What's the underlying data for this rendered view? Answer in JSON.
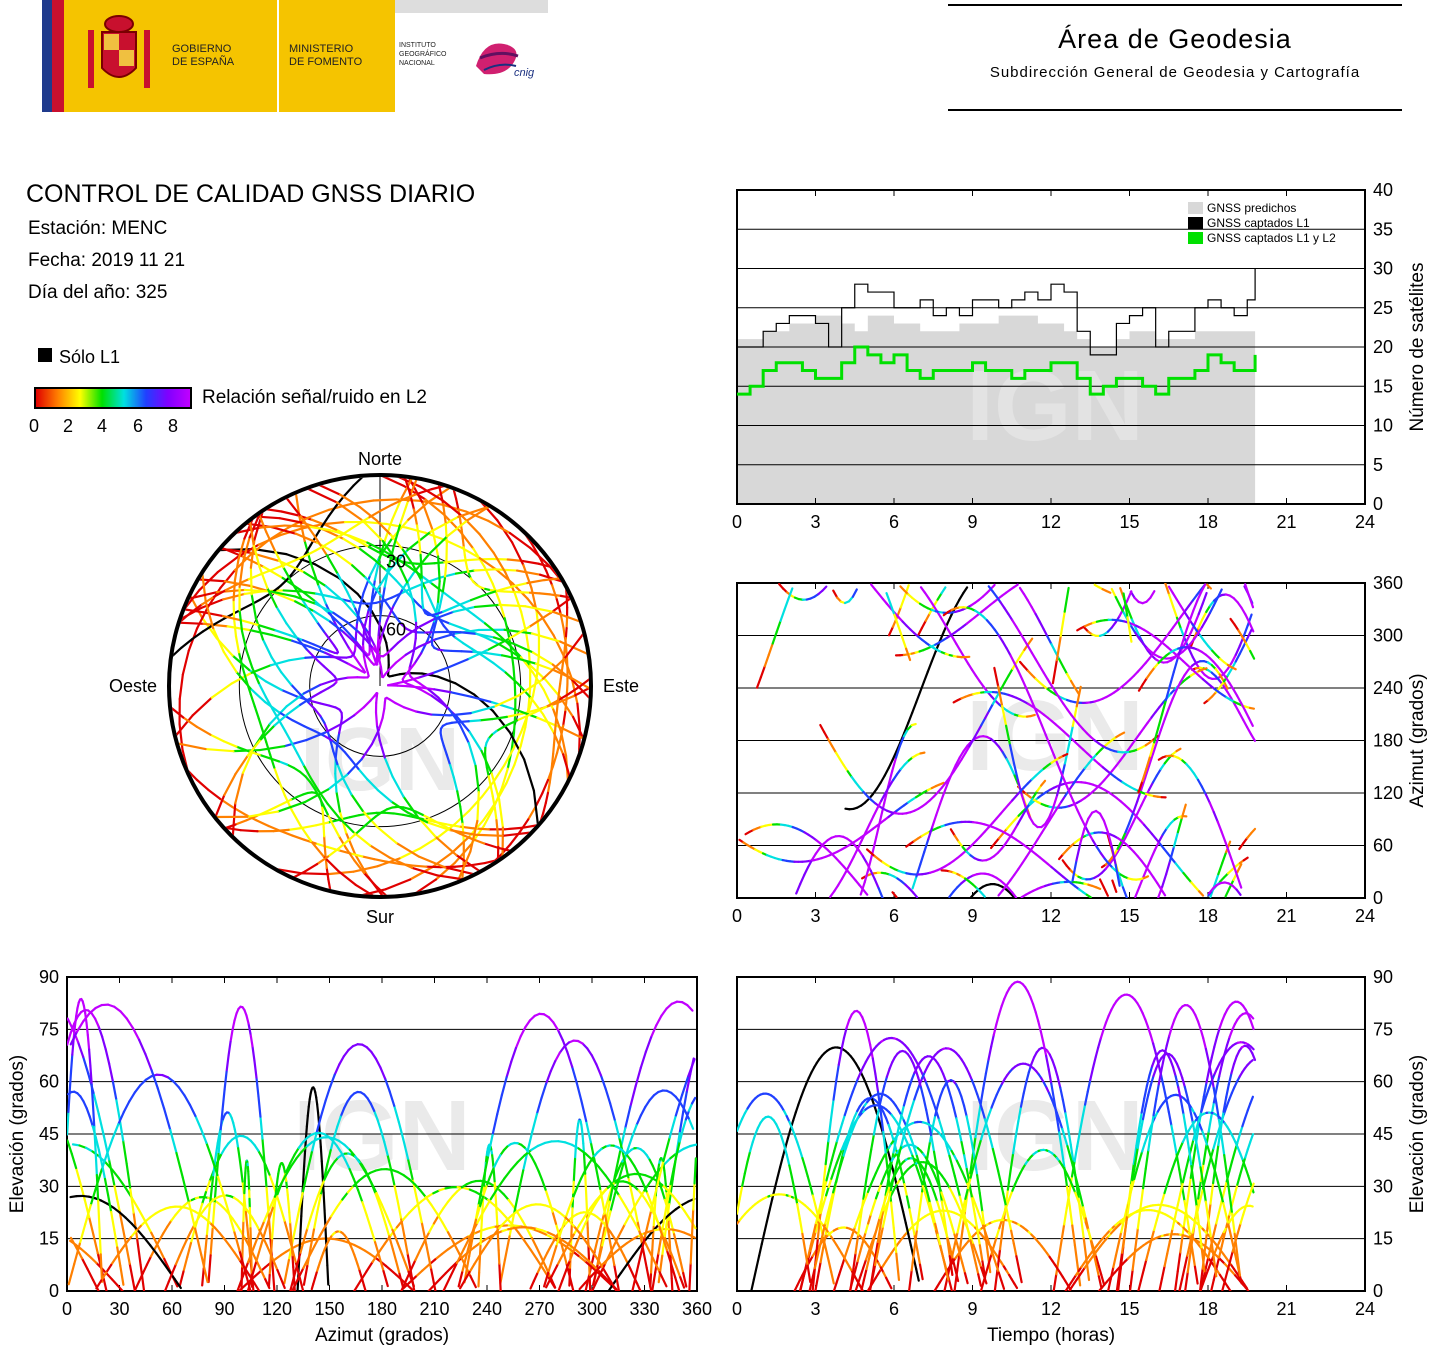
{
  "header": {
    "gobierno": [
      "GOBIERNO",
      "DE ESPAÑA"
    ],
    "ministerio": [
      "MINISTERIO",
      "DE FOMENTO"
    ],
    "instituto": [
      "INSTITUTO",
      "GEOGRÁFICO",
      "NACIONAL"
    ],
    "cnig": "cnig",
    "area_title": "Área de Geodesia",
    "area_subtitle": "Subdirección General de Geodesia y Cartografía"
  },
  "info": {
    "title": "CONTROL DE CALIDAD GNSS DIARIO",
    "station": "Estación: MENC",
    "date": "Fecha: 2019 11 21",
    "doy": "Día del año: 325"
  },
  "legend": {
    "l1_only": "Sólo L1",
    "snr_label": "Relación señal/ruido en L2",
    "snr_ticks": [
      "0",
      "2",
      "4",
      "6",
      "8"
    ],
    "colors": [
      "#e00000",
      "#ff8000",
      "#ffff00",
      "#00e000",
      "#00e0e0",
      "#2040ff",
      "#8000ff",
      "#c000ff"
    ]
  },
  "watermark": "IGN",
  "chart_data": [
    {
      "type": "line",
      "id": "satellites",
      "ylabel": "Número de satélites",
      "xlim": [
        0,
        24
      ],
      "ylim": [
        0,
        40
      ],
      "xticks": [
        0,
        3,
        6,
        9,
        12,
        15,
        18,
        21,
        24
      ],
      "yticks": [
        0,
        5,
        10,
        15,
        20,
        25,
        30,
        35,
        40
      ],
      "legend": [
        "GNSS predichos",
        "GNSS captados L1",
        "GNSS captados L1 y L2"
      ],
      "legend_colors": [
        "#d8d8d8",
        "#000000",
        "#00e000"
      ],
      "legend_position": "top-right",
      "grid": true,
      "x": [
        0,
        0.5,
        1,
        1.5,
        2,
        2.5,
        3,
        3.5,
        4,
        4.5,
        5,
        5.5,
        6,
        6.5,
        7,
        7.5,
        8,
        8.5,
        9,
        9.5,
        10,
        10.5,
        11,
        11.5,
        12,
        12.5,
        13,
        13.5,
        14,
        14.5,
        15,
        15.5,
        16,
        16.5,
        17,
        17.5,
        18,
        18.5,
        19,
        19.5,
        19.8
      ],
      "series": [
        {
          "name": "GNSS predichos",
          "values": [
            21,
            21,
            22,
            22,
            23,
            23,
            24,
            24,
            23,
            22,
            24,
            24,
            23,
            23,
            22,
            22,
            22,
            23,
            23,
            23,
            24,
            24,
            24,
            23,
            23,
            22,
            21,
            20,
            20,
            21,
            22,
            22,
            21,
            21,
            21,
            22,
            22,
            22,
            22,
            22,
            22
          ]
        },
        {
          "name": "GNSS captados L1",
          "values": [
            20,
            20,
            22,
            23,
            24,
            24,
            23,
            20,
            25,
            28,
            27,
            27,
            25,
            25,
            26,
            24,
            25,
            24,
            26,
            26,
            25,
            26,
            27,
            26,
            28,
            27,
            22,
            19,
            19,
            23,
            24,
            25,
            20,
            22,
            22,
            25,
            26,
            25,
            24,
            26,
            30
          ]
        },
        {
          "name": "GNSS captados L1 y L2",
          "values": [
            14,
            15,
            17,
            18,
            18,
            17,
            16,
            16,
            18,
            20,
            19,
            18,
            19,
            17,
            16,
            17,
            17,
            17,
            18,
            17,
            17,
            16,
            17,
            17,
            18,
            18,
            16,
            14,
            15,
            16,
            16,
            15,
            14,
            16,
            16,
            17,
            19,
            18,
            17,
            17,
            19
          ]
        }
      ]
    },
    {
      "type": "scatter",
      "id": "sky-polar",
      "direction_labels": {
        "n": "Norte",
        "s": "Sur",
        "e": "Este",
        "w": "Oeste"
      },
      "ring_labels": [
        "30",
        "60"
      ]
    },
    {
      "type": "scatter",
      "id": "azimuth-time",
      "ylabel": "Azimut (grados)",
      "xlim": [
        0,
        24
      ],
      "ylim": [
        0,
        360
      ],
      "xticks": [
        0,
        3,
        6,
        9,
        12,
        15,
        18,
        21,
        24
      ],
      "yticks": [
        0,
        60,
        120,
        180,
        240,
        300,
        360
      ],
      "grid": true
    },
    {
      "type": "scatter",
      "id": "elev-azimuth",
      "xlabel": "Azimut (grados)",
      "ylabel": "Elevación (grados)",
      "xlim": [
        0,
        360
      ],
      "ylim": [
        0,
        90
      ],
      "xticks": [
        0,
        30,
        60,
        90,
        120,
        150,
        180,
        210,
        240,
        270,
        300,
        330,
        360
      ],
      "yticks": [
        0,
        15,
        30,
        45,
        60,
        75,
        90
      ],
      "grid": true
    },
    {
      "type": "scatter",
      "id": "elev-time",
      "xlabel": "Tiempo (horas)",
      "ylabel": "Elevación (grados)",
      "xlim": [
        0,
        24
      ],
      "ylim": [
        0,
        90
      ],
      "xticks": [
        0,
        3,
        6,
        9,
        12,
        15,
        18,
        21,
        24
      ],
      "yticks": [
        0,
        15,
        30,
        45,
        60,
        75,
        90
      ],
      "grid": true
    }
  ]
}
